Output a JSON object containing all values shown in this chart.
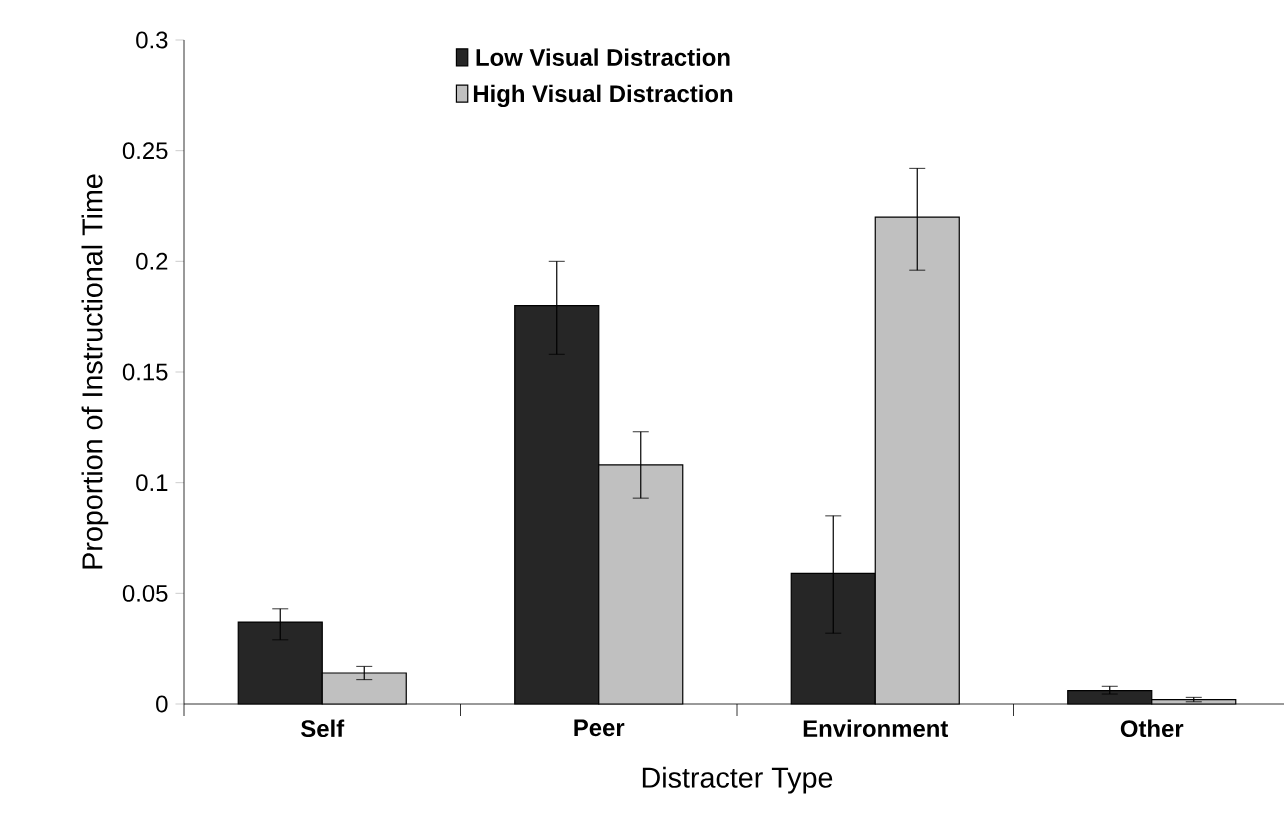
{
  "chart_data": {
    "type": "bar",
    "xlabel": "Distracter Type",
    "ylabel": "Proportion of Instructional Time",
    "categories": [
      "Self",
      "Peer",
      "Environment",
      "Other"
    ],
    "series": [
      {
        "name": "Low Visual Distraction",
        "color": "#262626",
        "values": [
          0.037,
          0.18,
          0.059,
          0.006
        ],
        "errors": [
          [
            0.029,
            0.043
          ],
          [
            0.158,
            0.2
          ],
          [
            0.032,
            0.085
          ],
          [
            0.0045,
            0.008
          ]
        ]
      },
      {
        "name": "High Visual Distraction",
        "color": "#c0c0c0",
        "values": [
          0.014,
          0.108,
          0.22,
          0.002
        ],
        "errors": [
          [
            0.011,
            0.017
          ],
          [
            0.093,
            0.123
          ],
          [
            0.196,
            0.242
          ],
          [
            0.001,
            0.003
          ]
        ]
      }
    ],
    "ylim": [
      0,
      0.3
    ],
    "yticks": [
      0,
      0.05,
      0.1,
      0.15,
      0.2,
      0.25,
      0.3
    ],
    "grid": false,
    "legend": "top"
  }
}
